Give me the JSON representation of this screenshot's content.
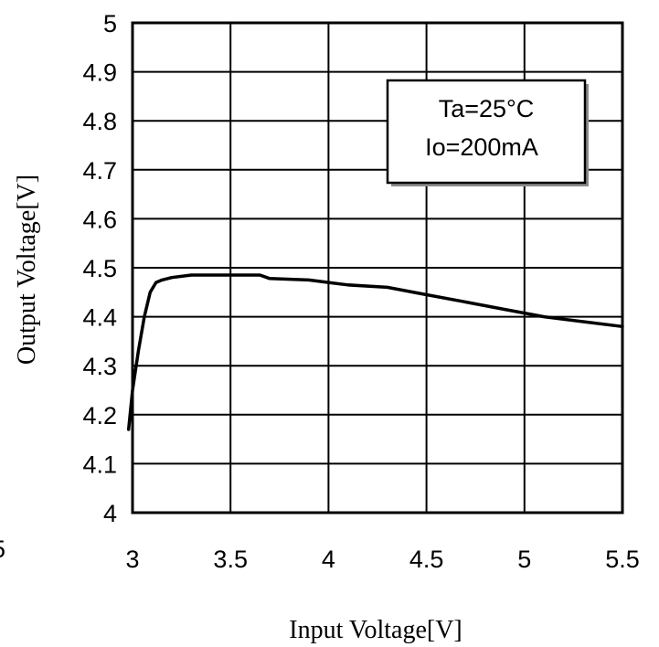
{
  "chart_data": {
    "type": "line",
    "title": "",
    "xlabel": "Input Voltage[V]",
    "ylabel": "Output Voltage[V]",
    "xlim": [
      3,
      5.5
    ],
    "ylim": [
      4,
      5
    ],
    "xticks": [
      3,
      3.5,
      4,
      4.5,
      5,
      5.5
    ],
    "xtick_labels": [
      "3",
      "3.5",
      "4",
      "4.5",
      "5",
      "5.5"
    ],
    "yticks": [
      4,
      4.1,
      4.2,
      4.3,
      4.4,
      4.5,
      4.6,
      4.7,
      4.8,
      4.9,
      5
    ],
    "ytick_labels": [
      "4",
      "4.1",
      "4.2",
      "4.3",
      "4.4",
      "4.5",
      "4.6",
      "4.7",
      "4.8",
      "4.9",
      "5"
    ],
    "grid": true,
    "annotation": {
      "line1": "Ta=25°C",
      "line2": "Io=200mA",
      "placement": "top-right"
    },
    "left_edge_fragment": "5",
    "series": [
      {
        "color": "#000000",
        "x": [
          2.98,
          3.0,
          3.03,
          3.06,
          3.09,
          3.12,
          3.15,
          3.2,
          3.3,
          3.5,
          3.65,
          3.7,
          3.9,
          4.0,
          4.1,
          4.3,
          4.5,
          4.7,
          4.9,
          5.1,
          5.3,
          5.5
        ],
        "y": [
          4.17,
          4.25,
          4.33,
          4.4,
          4.45,
          4.47,
          4.475,
          4.48,
          4.485,
          4.485,
          4.485,
          4.478,
          4.475,
          4.47,
          4.465,
          4.46,
          4.445,
          4.43,
          4.415,
          4.4,
          4.39,
          4.38
        ]
      }
    ]
  }
}
